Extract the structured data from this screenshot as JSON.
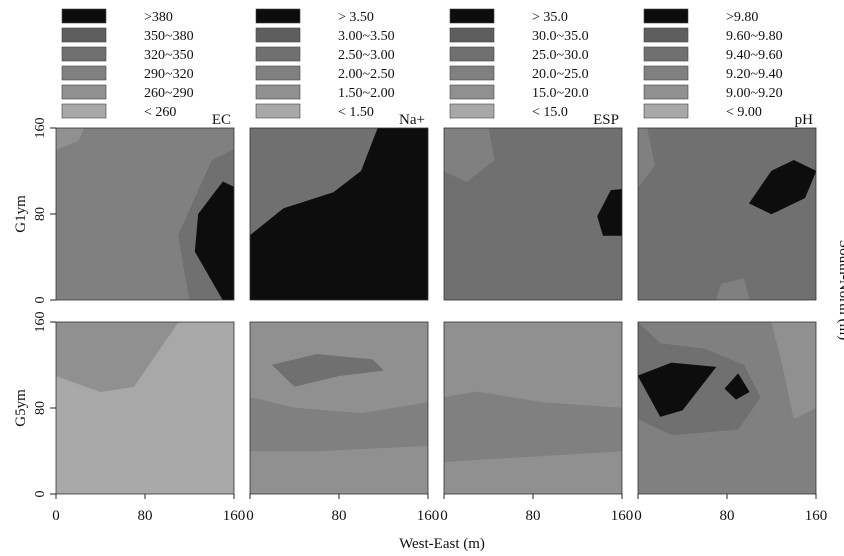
{
  "chart_data": {
    "type": "heatmap",
    "xlabel": "West-East (m)",
    "ylabel": "South-North (m)",
    "x_ticks": [
      "0",
      "80",
      "160"
    ],
    "y_ticks": [
      "0",
      "80",
      "160"
    ],
    "xlim": [
      0,
      160
    ],
    "ylim": [
      0,
      160
    ],
    "row_labels": [
      "G1ym",
      "G5ym"
    ],
    "variables": [
      {
        "name": "EC",
        "legend": [
          ">380",
          "350~380",
          "320~350",
          "290~320",
          "260~290",
          "< 260"
        ],
        "colors": [
          "#0d0d0d",
          "#5e5e5e",
          "#707070",
          "#808080",
          "#909090",
          "#a8a8a8"
        ]
      },
      {
        "name": "Na+",
        "legend": [
          "> 3.50",
          "3.00~3.50",
          "2.50~3.00",
          "2.00~2.50",
          "1.50~2.00",
          "< 1.50"
        ],
        "colors": [
          "#0d0d0d",
          "#5e5e5e",
          "#707070",
          "#808080",
          "#909090",
          "#a8a8a8"
        ]
      },
      {
        "name": "ESP",
        "legend": [
          "> 35.0",
          "30.0~35.0",
          "25.0~30.0",
          "20.0~25.0",
          "15.0~20.0",
          "< 15.0"
        ],
        "colors": [
          "#0d0d0d",
          "#5e5e5e",
          "#707070",
          "#808080",
          "#909090",
          "#a8a8a8"
        ]
      },
      {
        "name": "pH",
        "legend": [
          ">9.80",
          "9.60~9.80",
          "9.40~9.60",
          "9.20~9.40",
          "9.00~9.20",
          "< 9.00"
        ],
        "colors": [
          "#0d0d0d",
          "#5e5e5e",
          "#707070",
          "#808080",
          "#909090",
          "#a8a8a8"
        ]
      }
    ],
    "panels": [
      {
        "row": 0,
        "col": 0,
        "background": 3,
        "regions": [
          {
            "level": 4,
            "points": [
              [
                0,
                160
              ],
              [
                25,
                160
              ],
              [
                20,
                148
              ],
              [
                0,
                140
              ]
            ]
          },
          {
            "level": 2,
            "points": [
              [
                120,
                0
              ],
              [
                110,
                60
              ],
              [
                140,
                130
              ],
              [
                160,
                140
              ],
              [
                160,
                0
              ]
            ]
          },
          {
            "level": 0,
            "points": [
              [
                150,
                0
              ],
              [
                125,
                45
              ],
              [
                128,
                80
              ],
              [
                150,
                110
              ],
              [
                160,
                105
              ],
              [
                160,
                0
              ]
            ]
          }
        ]
      },
      {
        "row": 0,
        "col": 1,
        "background": 2,
        "regions": [
          {
            "level": 0,
            "points": [
              [
                0,
                0
              ],
              [
                0,
                60
              ],
              [
                30,
                85
              ],
              [
                75,
                100
              ],
              [
                100,
                120
              ],
              [
                115,
                160
              ],
              [
                160,
                160
              ],
              [
                160,
                0
              ]
            ]
          }
        ]
      },
      {
        "row": 0,
        "col": 2,
        "background": 2,
        "regions": [
          {
            "level": 3,
            "points": [
              [
                0,
                160
              ],
              [
                0,
                120
              ],
              [
                20,
                110
              ],
              [
                45,
                130
              ],
              [
                40,
                160
              ]
            ]
          },
          {
            "level": 0,
            "points": [
              [
                138,
                78
              ],
              [
                150,
                102
              ],
              [
                160,
                103
              ],
              [
                160,
                60
              ],
              [
                143,
                60
              ]
            ]
          }
        ]
      },
      {
        "row": 0,
        "col": 3,
        "background": 2,
        "regions": [
          {
            "level": 3,
            "points": [
              [
                0,
                160
              ],
              [
                0,
                105
              ],
              [
                15,
                125
              ],
              [
                8,
                160
              ]
            ]
          },
          {
            "level": 3,
            "points": [
              [
                70,
                0
              ],
              [
                75,
                15
              ],
              [
                95,
                20
              ],
              [
                100,
                0
              ]
            ]
          },
          {
            "level": 0,
            "points": [
              [
                100,
                90
              ],
              [
                120,
                120
              ],
              [
                140,
                130
              ],
              [
                160,
                120
              ],
              [
                150,
                95
              ],
              [
                120,
                80
              ]
            ]
          }
        ]
      },
      {
        "row": 1,
        "col": 0,
        "background": 5,
        "regions": [
          {
            "level": 4,
            "points": [
              [
                0,
                160
              ],
              [
                0,
                110
              ],
              [
                40,
                95
              ],
              [
                70,
                100
              ],
              [
                90,
                130
              ],
              [
                110,
                160
              ]
            ]
          }
        ]
      },
      {
        "row": 1,
        "col": 1,
        "background": 4,
        "regions": [
          {
            "level": 3,
            "points": [
              [
                0,
                90
              ],
              [
                0,
                40
              ],
              [
                60,
                40
              ],
              [
                160,
                45
              ],
              [
                160,
                85
              ],
              [
                100,
                75
              ],
              [
                40,
                80
              ]
            ]
          },
          {
            "level": 2,
            "points": [
              [
                20,
                120
              ],
              [
                40,
                100
              ],
              [
                80,
                110
              ],
              [
                120,
                115
              ],
              [
                110,
                125
              ],
              [
                60,
                130
              ]
            ]
          }
        ]
      },
      {
        "row": 1,
        "col": 2,
        "background": 4,
        "regions": [
          {
            "level": 3,
            "points": [
              [
                0,
                90
              ],
              [
                0,
                30
              ],
              [
                80,
                35
              ],
              [
                160,
                40
              ],
              [
                160,
                80
              ],
              [
                90,
                85
              ],
              [
                30,
                95
              ]
            ]
          }
        ]
      },
      {
        "row": 1,
        "col": 3,
        "background": 3,
        "regions": [
          {
            "level": 4,
            "points": [
              [
                120,
                160
              ],
              [
                160,
                160
              ],
              [
                160,
                80
              ],
              [
                140,
                70
              ],
              [
                130,
                120
              ]
            ]
          },
          {
            "level": 2,
            "points": [
              [
                0,
                160
              ],
              [
                20,
                140
              ],
              [
                60,
                135
              ],
              [
                95,
                120
              ],
              [
                110,
                90
              ],
              [
                90,
                60
              ],
              [
                30,
                55
              ],
              [
                0,
                70
              ]
            ]
          },
          {
            "level": 0,
            "points": [
              [
                0,
                110
              ],
              [
                30,
                122
              ],
              [
                70,
                118
              ],
              [
                40,
                78
              ],
              [
                20,
                72
              ]
            ]
          },
          {
            "level": 0,
            "points": [
              [
                78,
                98
              ],
              [
                90,
                112
              ],
              [
                100,
                95
              ],
              [
                88,
                88
              ]
            ]
          }
        ]
      }
    ]
  }
}
